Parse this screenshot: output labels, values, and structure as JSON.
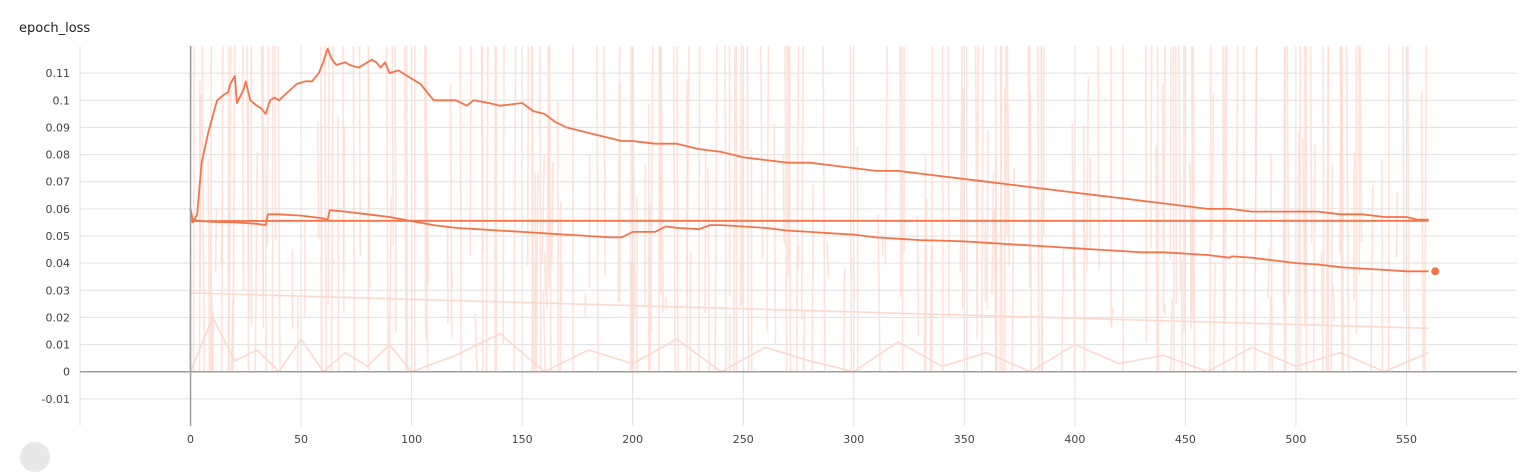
{
  "chart_data": {
    "type": "line",
    "title": "epoch_loss",
    "xlabel": "",
    "ylabel": "",
    "xlim": [
      -50,
      600
    ],
    "ylim": [
      -0.02,
      0.12
    ],
    "x_ticks": [
      0,
      50,
      100,
      150,
      200,
      250,
      300,
      350,
      400,
      450,
      500,
      550
    ],
    "y_ticks": [
      -0.01,
      0,
      0.01,
      0.02,
      0.03,
      0.04,
      0.05,
      0.06,
      0.07,
      0.08,
      0.09,
      0.1,
      0.11
    ],
    "grid": true,
    "colors": {
      "smoothed": "#f4744a",
      "raw": "#fcd9cf",
      "axis": "#9e9e9e",
      "grid": "#e0e0e0"
    },
    "series": [
      {
        "smoothed": true,
        "x": [
          0,
          1,
          3,
          5,
          8,
          10,
          12,
          15,
          17,
          18,
          20,
          21,
          24,
          25,
          27,
          30,
          32,
          34,
          36,
          38,
          40,
          44,
          48,
          52,
          55,
          58,
          60,
          62,
          64,
          66,
          70,
          72,
          76,
          80,
          82,
          84,
          86,
          88,
          90,
          94,
          98,
          100,
          104,
          110,
          115,
          120,
          125,
          128,
          135,
          140,
          150,
          155,
          160,
          165,
          170,
          175,
          180,
          185,
          190,
          195,
          200,
          210,
          220,
          230,
          240,
          250,
          260,
          270,
          280,
          290,
          300,
          310,
          320,
          330,
          340,
          350,
          360,
          370,
          380,
          390,
          400,
          410,
          420,
          430,
          440,
          450,
          460,
          470,
          480,
          490,
          500,
          510,
          520,
          530,
          540,
          550,
          555,
          560
        ],
        "values": [
          0.06,
          0.055,
          0.058,
          0.077,
          0.088,
          0.094,
          0.1,
          0.102,
          0.103,
          0.106,
          0.109,
          0.099,
          0.104,
          0.107,
          0.1,
          0.098,
          0.097,
          0.095,
          0.1,
          0.101,
          0.1,
          0.103,
          0.106,
          0.107,
          0.107,
          0.11,
          0.114,
          0.119,
          0.115,
          0.113,
          0.114,
          0.113,
          0.112,
          0.114,
          0.115,
          0.114,
          0.112,
          0.114,
          0.11,
          0.111,
          0.109,
          0.108,
          0.106,
          0.1,
          0.1,
          0.1,
          0.098,
          0.1,
          0.099,
          0.098,
          0.099,
          0.096,
          0.095,
          0.092,
          0.09,
          0.089,
          0.088,
          0.087,
          0.086,
          0.085,
          0.085,
          0.084,
          0.084,
          0.082,
          0.081,
          0.079,
          0.078,
          0.077,
          0.077,
          0.076,
          0.075,
          0.074,
          0.074,
          0.073,
          0.072,
          0.071,
          0.07,
          0.069,
          0.068,
          0.067,
          0.066,
          0.065,
          0.064,
          0.063,
          0.062,
          0.061,
          0.06,
          0.06,
          0.059,
          0.059,
          0.059,
          0.059,
          0.058,
          0.058,
          0.057,
          0.057,
          0.056,
          0.056
        ]
      },
      {
        "smoothed": true,
        "x": [
          0,
          1,
          5,
          10,
          20,
          30,
          34,
          35,
          40,
          50,
          60,
          62,
          63,
          70,
          80,
          90,
          100,
          110,
          120,
          130,
          140,
          150,
          160,
          170,
          180,
          190,
          195,
          200,
          210,
          215,
          220,
          230,
          235,
          240,
          250,
          260,
          270,
          280,
          290,
          300,
          310,
          320,
          330,
          340,
          350,
          360,
          370,
          380,
          390,
          400,
          410,
          420,
          430,
          440,
          450,
          460,
          470,
          471,
          480,
          490,
          500,
          510,
          520,
          530,
          540,
          550,
          560
        ],
        "values": [
          0.06,
          0.056,
          0.0555,
          0.0552,
          0.055,
          0.0545,
          0.054,
          0.058,
          0.058,
          0.0575,
          0.0565,
          0.056,
          0.0595,
          0.059,
          0.058,
          0.057,
          0.0555,
          0.054,
          0.053,
          0.0525,
          0.052,
          0.0515,
          0.051,
          0.0505,
          0.05,
          0.0495,
          0.0495,
          0.0515,
          0.0515,
          0.0535,
          0.053,
          0.0525,
          0.054,
          0.054,
          0.0535,
          0.053,
          0.052,
          0.0515,
          0.051,
          0.0505,
          0.0495,
          0.049,
          0.0485,
          0.0483,
          0.048,
          0.0475,
          0.047,
          0.0465,
          0.046,
          0.0455,
          0.045,
          0.0445,
          0.044,
          0.044,
          0.0435,
          0.043,
          0.042,
          0.0425,
          0.042,
          0.041,
          0.04,
          0.0395,
          0.0385,
          0.038,
          0.0375,
          0.037,
          0.037
        ]
      },
      {
        "smoothed": true,
        "x": [
          0,
          5,
          50,
          100,
          150,
          200,
          250,
          300,
          350,
          400,
          450,
          500,
          550,
          560
        ],
        "values": [
          0.0555,
          0.0555,
          0.0556,
          0.0556,
          0.0556,
          0.0556,
          0.0556,
          0.0556,
          0.0556,
          0.0556,
          0.0556,
          0.0556,
          0.0556,
          0.0556
        ]
      },
      {
        "smoothed": false,
        "x": [
          0,
          560
        ],
        "values": [
          0.029,
          0.016
        ]
      },
      {
        "smoothed": false,
        "x": [
          0,
          10,
          20,
          30,
          40,
          50,
          60,
          70,
          80,
          90,
          100,
          120,
          140,
          160,
          180,
          200,
          220,
          240,
          260,
          280,
          300,
          320,
          340,
          360,
          380,
          400,
          420,
          440,
          460,
          480,
          500,
          520,
          540,
          560
        ],
        "values": [
          0.0,
          0.02,
          0.004,
          0.008,
          0.0,
          0.012,
          0.0,
          0.007,
          0.002,
          0.01,
          0.0,
          0.006,
          0.014,
          0.0,
          0.008,
          0.003,
          0.012,
          0.0,
          0.009,
          0.004,
          0.0,
          0.011,
          0.002,
          0.007,
          0.0,
          0.01,
          0.003,
          0.006,
          0.0,
          0.009,
          0.002,
          0.007,
          0.0,
          0.007
        ]
      }
    ],
    "endpoint": {
      "x": 563,
      "y": 0.037
    }
  }
}
